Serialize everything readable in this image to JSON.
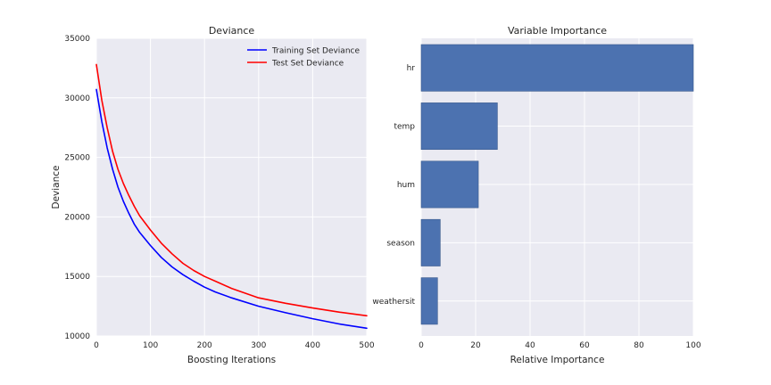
{
  "chart_data": [
    {
      "type": "line",
      "title": "Deviance",
      "xlabel": "Boosting Iterations",
      "ylabel": "Deviance",
      "xlim": [
        0,
        500
      ],
      "ylim": [
        10000,
        35000
      ],
      "xticks": [
        0,
        100,
        200,
        300,
        400,
        500
      ],
      "yticks": [
        10000,
        15000,
        20000,
        25000,
        30000,
        35000
      ],
      "grid": true,
      "legend": "top-right",
      "x": [
        0,
        10,
        20,
        30,
        40,
        50,
        60,
        70,
        80,
        100,
        120,
        140,
        160,
        180,
        200,
        220,
        250,
        300,
        350,
        400,
        450,
        500
      ],
      "series": [
        {
          "name": "Training Set Deviance",
          "color": "#0000ff",
          "values": [
            30700,
            28000,
            25800,
            24000,
            22500,
            21300,
            20300,
            19400,
            18700,
            17600,
            16600,
            15800,
            15150,
            14600,
            14100,
            13700,
            13200,
            12500,
            11950,
            11450,
            11000,
            10650
          ]
        },
        {
          "name": "Test Set Deviance",
          "color": "#ff0000",
          "values": [
            32800,
            29800,
            27500,
            25500,
            24000,
            22800,
            21800,
            20900,
            20100,
            18900,
            17800,
            16900,
            16100,
            15500,
            15000,
            14600,
            14000,
            13200,
            12750,
            12350,
            12000,
            11700
          ]
        }
      ]
    },
    {
      "type": "bar",
      "orientation": "horizontal",
      "title": "Variable Importance",
      "xlabel": "Relative Importance",
      "ylabel": "",
      "xlim": [
        0,
        100
      ],
      "xticks": [
        0,
        20,
        40,
        60,
        80,
        100
      ],
      "grid": true,
      "color": "#4c72b0",
      "categories": [
        "hr",
        "temp",
        "hum",
        "season",
        "weathersit"
      ],
      "values": [
        100,
        28,
        21,
        7,
        6
      ]
    }
  ]
}
